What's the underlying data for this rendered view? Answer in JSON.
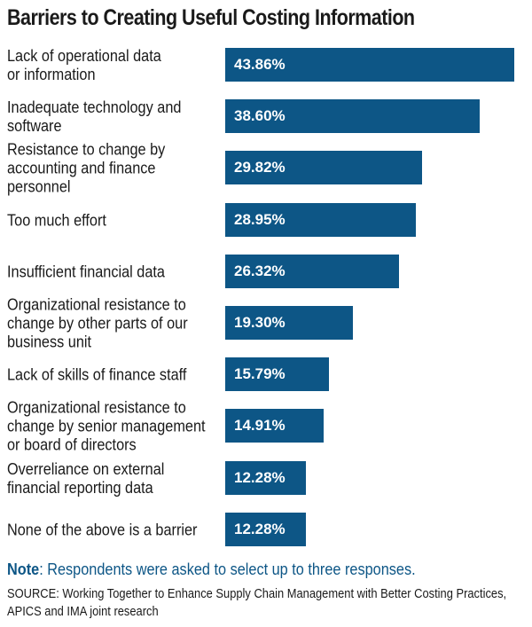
{
  "chart_data": {
    "type": "bar",
    "orientation": "horizontal",
    "title": "Barriers to Creating Useful Costing Information",
    "categories": [
      "Lack of operational data\nor information",
      "Inadequate technology and\nsoftware",
      "Resistance to change by\naccounting and finance\npersonnel",
      "Too much effort",
      "Insufficient financial data",
      "Organizational resistance to\nchange by other parts of our\nbusiness unit",
      "Lack of skills of finance staff",
      "Organizational resistance to\nchange by senior management\nor board of directors",
      "Overreliance on external\nfinancial reporting data",
      "None of the above is a barrier"
    ],
    "values": [
      43.86,
      38.6,
      29.82,
      28.95,
      26.32,
      19.3,
      15.79,
      14.91,
      12.28,
      12.28
    ],
    "value_labels": [
      "43.86%",
      "38.60%",
      "29.82%",
      "28.95%",
      "26.32%",
      "19.30%",
      "15.79%",
      "14.91%",
      "12.28%",
      "12.28%"
    ],
    "xlim": [
      0,
      44.5
    ],
    "bar_color": "#0d5686"
  },
  "note": {
    "label": "Note",
    "text": ": Respondents were asked to select up to three responses."
  },
  "source": {
    "line1": "SOURCE: Working Together to Enhance Supply Chain Management with Better Costing Practices,",
    "line2": "APICS and IMA joint research"
  }
}
